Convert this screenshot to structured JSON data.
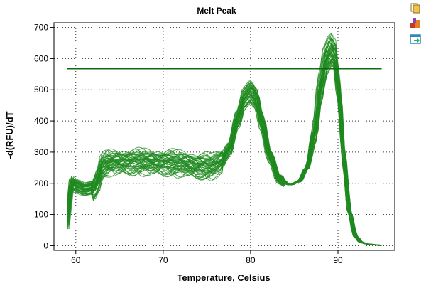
{
  "toolbar": {
    "icons": [
      "copy-icon",
      "export-icon",
      "refresh-chart-icon"
    ],
    "colors": {
      "page": "#f2c14e",
      "box": "#c0392b",
      "window": "#2e86c1",
      "arrow": "#27ae60"
    }
  },
  "colors": {
    "curve": "#1f8a1f",
    "threshold": "#0f6b0f",
    "grid": "#333333",
    "axis": "#000000"
  },
  "chart_data": {
    "type": "line",
    "title": "Melt Peak",
    "xlabel": "Temperature, Celsius",
    "ylabel": "-d(RFU)/dT",
    "xlim": [
      57.5,
      96.5
    ],
    "ylim": [
      -15,
      715
    ],
    "xticks": [
      60,
      70,
      80,
      90
    ],
    "yticks": [
      0,
      100,
      200,
      300,
      400,
      500,
      600,
      700
    ],
    "x_tick_labels": [
      "60",
      "70",
      "80",
      "90"
    ],
    "y_tick_labels": [
      "0",
      "100",
      "200",
      "300",
      "400",
      "500",
      "600",
      "700"
    ],
    "grid": true,
    "legend": "none",
    "threshold": {
      "value": 568,
      "x_start": 59,
      "x_end": 95
    },
    "series_count": 48,
    "representative_curve": {
      "x": [
        59.0,
        59.5,
        60.0,
        61.0,
        62.0,
        62.5,
        63.0,
        64.0,
        66.0,
        68.0,
        70.0,
        72.0,
        74.0,
        75.5,
        76.5,
        77.5,
        78.5,
        79.3,
        80.0,
        80.6,
        81.3,
        82.2,
        83.3,
        84.5,
        85.5,
        86.5,
        87.3,
        88.0,
        88.6,
        89.2,
        89.6,
        90.1,
        90.7,
        91.3,
        92.0,
        92.7,
        93.5,
        94.3,
        95.0
      ],
      "y": [
        70,
        200,
        190,
        180,
        185,
        210,
        258,
        268,
        270,
        270,
        268,
        265,
        258,
        255,
        268,
        310,
        410,
        480,
        500,
        478,
        400,
        290,
        215,
        195,
        205,
        250,
        370,
        520,
        610,
        645,
        625,
        500,
        280,
        110,
        30,
        10,
        5,
        3,
        0
      ]
    }
  }
}
